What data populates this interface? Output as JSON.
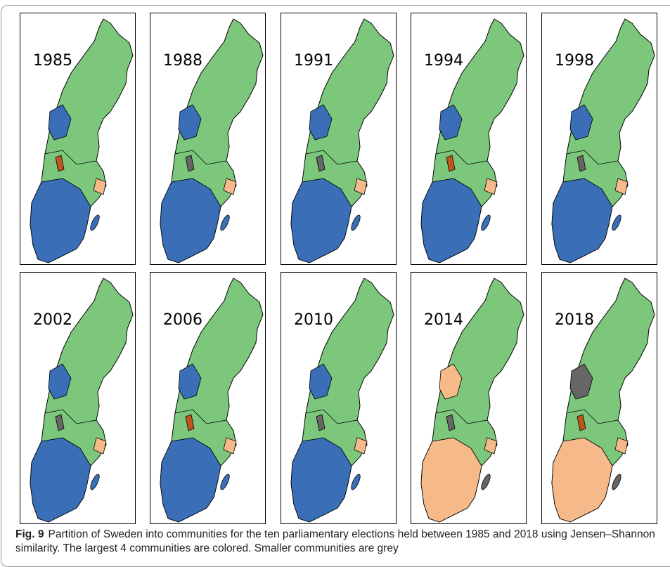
{
  "figure": {
    "panels": [
      "1985",
      "1988",
      "1991",
      "1994",
      "1998",
      "2002",
      "2006",
      "2010",
      "2014",
      "2018"
    ],
    "caption": {
      "label": "Fig. 9",
      "text": "Partition of Sweden into communities for the ten parliamentary elections held between 1985 and 2018 using Jensen–Shannon similarity. The largest 4 communities are colored. Smaller communities are grey"
    }
  }
}
